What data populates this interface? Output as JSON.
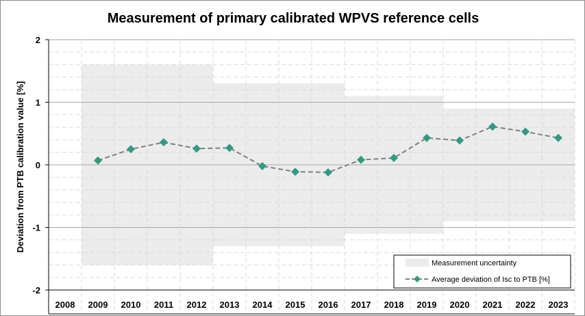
{
  "colors": {
    "series": "#2e9c82",
    "line": "#7f7f7f",
    "band": "#ececec",
    "grid_major": "#a6a6a6",
    "grid_minor": "#d9d9d9"
  },
  "chart_data": {
    "type": "line",
    "title": "Measurement of primary calibrated WPVS reference cells",
    "xlabel": "",
    "ylabel": "Deviation from PTB calibration value [%]",
    "categories": [
      "2008",
      "2009",
      "2010",
      "2011",
      "2012",
      "2013",
      "2014",
      "2015",
      "2016",
      "2017",
      "2018",
      "2019",
      "2020",
      "2021",
      "2022",
      "2023"
    ],
    "ylim": [
      -2,
      2
    ],
    "yticks": [
      "2",
      "1",
      "0",
      "-1",
      "-2"
    ],
    "grid": true,
    "legend_position": "bottom-right",
    "series": [
      {
        "name": "Average deviation of Isc to PTB [%]",
        "marker": "diamond",
        "line_style": "dashed",
        "values": [
          null,
          0.07,
          0.25,
          0.36,
          0.26,
          0.27,
          -0.02,
          -0.11,
          -0.12,
          0.08,
          0.11,
          0.43,
          0.39,
          0.61,
          0.53,
          0.43
        ]
      }
    ],
    "uncertainty_band": {
      "name": "Measurement uncertainty",
      "segments": [
        {
          "from": "2009",
          "to": "2012",
          "value": 1.6
        },
        {
          "from": "2013",
          "to": "2016",
          "value": 1.3
        },
        {
          "from": "2017",
          "to": "2019",
          "value": 1.1
        },
        {
          "from": "2020",
          "to": "2023",
          "value": 0.9
        }
      ]
    }
  }
}
